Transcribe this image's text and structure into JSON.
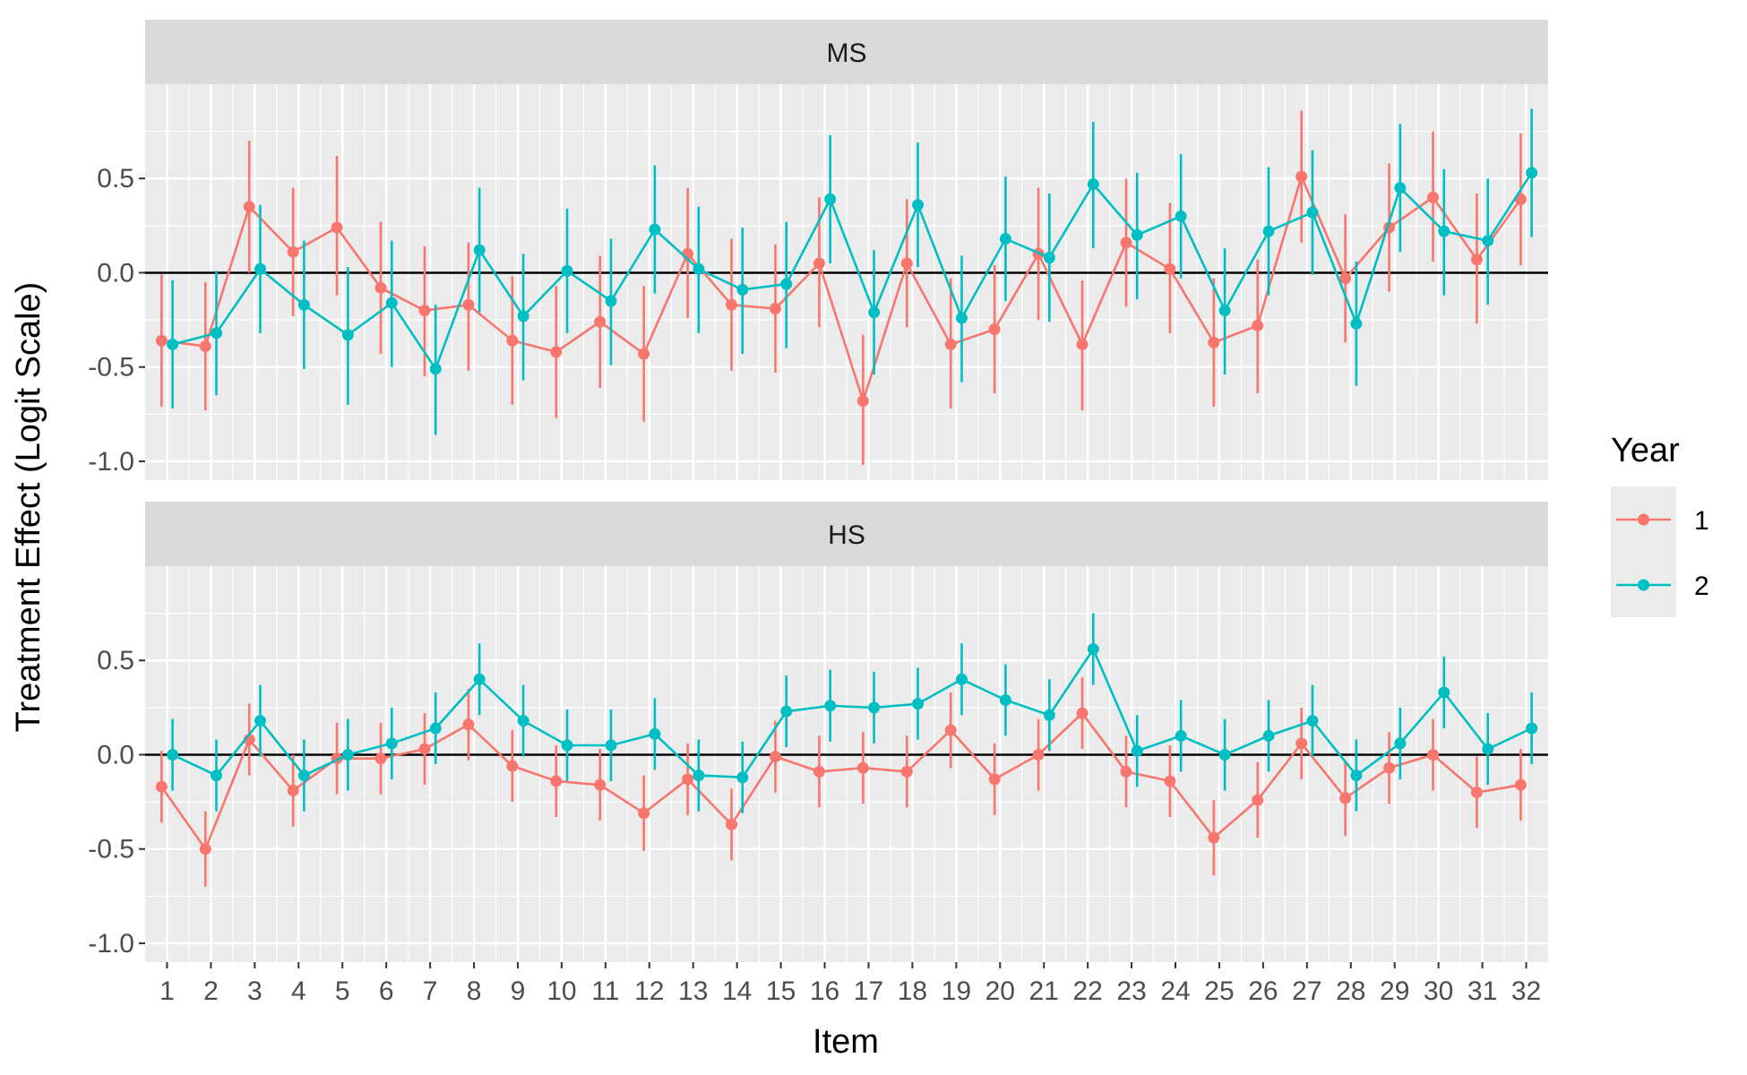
{
  "chart_data": {
    "type": "line",
    "ylabel": "Treatment Effect (Logit Scale)",
    "xlabel": "Item",
    "x": [
      1,
      2,
      3,
      4,
      5,
      6,
      7,
      8,
      9,
      10,
      11,
      12,
      13,
      14,
      15,
      16,
      17,
      18,
      19,
      20,
      21,
      22,
      23,
      24,
      25,
      26,
      27,
      28,
      29,
      30,
      31,
      32
    ],
    "xlim": [
      0.5,
      32.5
    ],
    "ylim": [
      -1.1,
      1.0
    ],
    "yticks": [
      -1.0,
      -0.5,
      0.0,
      0.5
    ],
    "ytick_labels": [
      "-1.0",
      "-0.5",
      "0.0",
      "0.5"
    ],
    "hline": 0.0,
    "grid": true,
    "legend": {
      "title": "Year",
      "placement": "right",
      "entries": [
        {
          "label": "1",
          "color": "#F8766D"
        },
        {
          "label": "2",
          "color": "#00BFC4"
        }
      ]
    },
    "panels": [
      {
        "label": "MS",
        "series": [
          {
            "name": "1",
            "color": "#F8766D",
            "values": [
              -0.36,
              -0.39,
              0.35,
              0.11,
              0.24,
              -0.08,
              -0.2,
              -0.17,
              -0.36,
              -0.42,
              -0.26,
              -0.43,
              0.1,
              -0.17,
              -0.19,
              0.05,
              -0.68,
              0.05,
              -0.38,
              -0.3,
              0.1,
              -0.38,
              0.16,
              0.02,
              -0.37,
              -0.28,
              0.51,
              -0.03,
              0.24,
              0.4,
              0.07,
              0.39
            ],
            "lower": [
              -0.71,
              -0.73,
              0.0,
              -0.23,
              -0.12,
              -0.43,
              -0.55,
              -0.52,
              -0.7,
              -0.77,
              -0.61,
              -0.79,
              -0.24,
              -0.52,
              -0.53,
              -0.29,
              -1.02,
              -0.29,
              -0.72,
              -0.64,
              -0.25,
              -0.73,
              -0.18,
              -0.32,
              -0.71,
              -0.64,
              0.16,
              -0.37,
              -0.1,
              0.06,
              -0.27,
              0.04
            ],
            "upper": [
              -0.01,
              -0.05,
              0.7,
              0.45,
              0.62,
              0.27,
              0.14,
              0.16,
              -0.02,
              -0.07,
              0.09,
              -0.07,
              0.45,
              0.18,
              0.15,
              0.4,
              -0.33,
              0.39,
              -0.03,
              0.04,
              0.45,
              -0.04,
              0.5,
              0.37,
              -0.03,
              0.07,
              0.86,
              0.31,
              0.58,
              0.75,
              0.42,
              0.74
            ]
          },
          {
            "name": "2",
            "color": "#00BFC4",
            "values": [
              -0.38,
              -0.32,
              0.02,
              -0.17,
              -0.33,
              -0.16,
              -0.51,
              0.12,
              -0.23,
              0.01,
              -0.15,
              0.23,
              0.02,
              -0.09,
              -0.06,
              0.39,
              -0.21,
              0.36,
              -0.24,
              0.18,
              0.08,
              0.47,
              0.2,
              0.3,
              -0.2,
              0.22,
              0.32,
              -0.27,
              0.45,
              0.22,
              0.17,
              0.53
            ],
            "lower": [
              -0.72,
              -0.65,
              -0.32,
              -0.51,
              -0.7,
              -0.5,
              -0.86,
              -0.21,
              -0.57,
              -0.32,
              -0.49,
              -0.11,
              -0.32,
              -0.43,
              -0.4,
              0.05,
              -0.54,
              0.03,
              -0.58,
              -0.15,
              -0.26,
              0.13,
              -0.14,
              -0.03,
              -0.54,
              -0.12,
              -0.01,
              -0.6,
              0.11,
              -0.12,
              -0.17,
              0.19
            ],
            "upper": [
              -0.04,
              0.01,
              0.36,
              0.17,
              0.03,
              0.17,
              -0.17,
              0.45,
              0.1,
              0.34,
              0.18,
              0.57,
              0.35,
              0.24,
              0.27,
              0.73,
              0.12,
              0.69,
              0.09,
              0.51,
              0.42,
              0.8,
              0.53,
              0.63,
              0.13,
              0.56,
              0.65,
              0.06,
              0.79,
              0.55,
              0.5,
              0.87
            ]
          }
        ]
      },
      {
        "label": "HS",
        "series": [
          {
            "name": "1",
            "color": "#F8766D",
            "values": [
              -0.17,
              -0.5,
              0.08,
              -0.19,
              -0.02,
              -0.02,
              0.03,
              0.16,
              -0.06,
              -0.14,
              -0.16,
              -0.31,
              -0.13,
              -0.37,
              -0.01,
              -0.09,
              -0.07,
              -0.09,
              0.13,
              -0.13,
              0.0,
              0.22,
              -0.09,
              -0.14,
              -0.44,
              -0.24,
              0.06,
              -0.23,
              -0.07,
              0.0,
              -0.2,
              -0.16
            ],
            "lower": [
              -0.36,
              -0.7,
              -0.11,
              -0.38,
              -0.21,
              -0.21,
              -0.16,
              -0.03,
              -0.25,
              -0.33,
              -0.35,
              -0.51,
              -0.32,
              -0.56,
              -0.2,
              -0.28,
              -0.26,
              -0.28,
              -0.07,
              -0.32,
              -0.19,
              0.03,
              -0.28,
              -0.33,
              -0.64,
              -0.44,
              -0.13,
              -0.43,
              -0.26,
              -0.19,
              -0.39,
              -0.35
            ],
            "upper": [
              0.02,
              -0.3,
              0.27,
              0.0,
              0.17,
              0.17,
              0.22,
              0.35,
              0.13,
              0.05,
              0.03,
              -0.11,
              0.06,
              -0.18,
              0.18,
              0.1,
              0.12,
              0.1,
              0.33,
              0.06,
              0.19,
              0.41,
              0.1,
              0.05,
              -0.24,
              -0.04,
              0.25,
              -0.03,
              0.12,
              0.19,
              -0.01,
              0.03
            ]
          },
          {
            "name": "2",
            "color": "#00BFC4",
            "values": [
              0.0,
              -0.11,
              0.18,
              -0.11,
              0.0,
              0.06,
              0.14,
              0.4,
              0.18,
              0.05,
              0.05,
              0.11,
              -0.11,
              -0.12,
              0.23,
              0.26,
              0.25,
              0.27,
              0.4,
              0.29,
              0.21,
              0.56,
              0.02,
              0.1,
              0.0,
              0.1,
              0.18,
              -0.11,
              0.06,
              0.33,
              0.03,
              0.14
            ],
            "lower": [
              -0.19,
              -0.3,
              -0.01,
              -0.3,
              -0.19,
              -0.13,
              -0.05,
              0.21,
              -0.01,
              -0.14,
              -0.14,
              -0.08,
              -0.3,
              -0.31,
              0.04,
              0.07,
              0.06,
              0.08,
              0.21,
              0.1,
              0.02,
              0.37,
              -0.17,
              -0.09,
              -0.19,
              -0.09,
              -0.01,
              -0.3,
              -0.13,
              0.14,
              -0.16,
              -0.05
            ],
            "upper": [
              0.19,
              0.08,
              0.37,
              0.08,
              0.19,
              0.25,
              0.33,
              0.59,
              0.37,
              0.24,
              0.24,
              0.3,
              0.08,
              0.07,
              0.42,
              0.45,
              0.44,
              0.46,
              0.59,
              0.48,
              0.4,
              0.75,
              0.21,
              0.29,
              0.19,
              0.29,
              0.37,
              0.08,
              0.25,
              0.52,
              0.22,
              0.33
            ]
          }
        ]
      }
    ]
  }
}
